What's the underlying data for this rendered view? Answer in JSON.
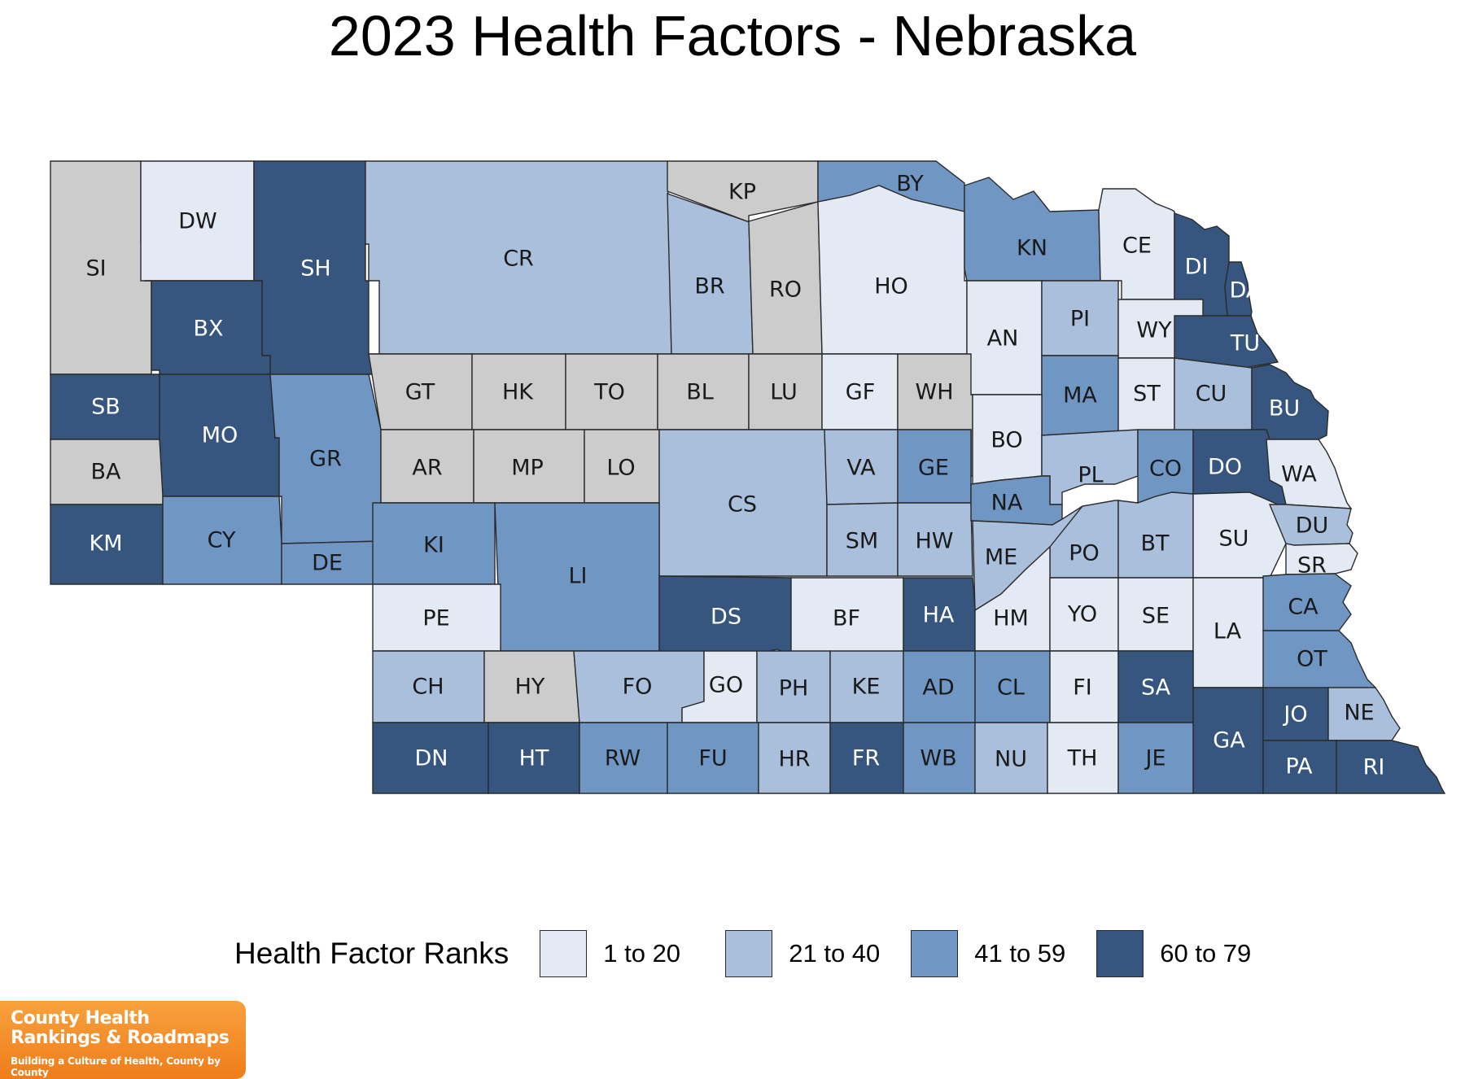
{
  "title": "2023 Health Factors - Nebraska",
  "colors": {
    "1": "#e3eaf4",
    "2": "#a9bfdb",
    "3": "#7096c4",
    "4": "#36567f",
    "none": "#cccccc",
    "light_text": "#ffffff",
    "dark_text": "#1a1a1a"
  },
  "legend": {
    "title": "Health Factor Ranks",
    "items": [
      {
        "label": "1 to 20",
        "class": "1"
      },
      {
        "label": "21 to 40",
        "class": "2"
      },
      {
        "label": "41 to 59",
        "class": "3"
      },
      {
        "label": "60 to 79",
        "class": "4"
      }
    ]
  },
  "counties": [
    {
      "code": "SI",
      "class": "none"
    },
    {
      "code": "DW",
      "class": "1"
    },
    {
      "code": "SH",
      "class": "4"
    },
    {
      "code": "BX",
      "class": "4"
    },
    {
      "code": "CR",
      "class": "2"
    },
    {
      "code": "KP",
      "class": "none"
    },
    {
      "code": "BR",
      "class": "2"
    },
    {
      "code": "RO",
      "class": "none"
    },
    {
      "code": "BY",
      "class": "3"
    },
    {
      "code": "HO",
      "class": "1"
    },
    {
      "code": "KN",
      "class": "3"
    },
    {
      "code": "CE",
      "class": "1"
    },
    {
      "code": "DI",
      "class": "4"
    },
    {
      "code": "DA",
      "class": "4"
    },
    {
      "code": "AN",
      "class": "1"
    },
    {
      "code": "PI",
      "class": "2"
    },
    {
      "code": "WY",
      "class": "1"
    },
    {
      "code": "TU",
      "class": "4"
    },
    {
      "code": "SB",
      "class": "4"
    },
    {
      "code": "MO",
      "class": "4"
    },
    {
      "code": "GR",
      "class": "3"
    },
    {
      "code": "GT",
      "class": "none"
    },
    {
      "code": "HK",
      "class": "none"
    },
    {
      "code": "TO",
      "class": "none"
    },
    {
      "code": "BL",
      "class": "none"
    },
    {
      "code": "LU",
      "class": "none"
    },
    {
      "code": "GF",
      "class": "1"
    },
    {
      "code": "WH",
      "class": "none"
    },
    {
      "code": "MA",
      "class": "3"
    },
    {
      "code": "ST",
      "class": "1"
    },
    {
      "code": "CU",
      "class": "2"
    },
    {
      "code": "BU",
      "class": "4"
    },
    {
      "code": "BA",
      "class": "none"
    },
    {
      "code": "AR",
      "class": "none"
    },
    {
      "code": "MP",
      "class": "none"
    },
    {
      "code": "LO",
      "class": "none"
    },
    {
      "code": "CS",
      "class": "2"
    },
    {
      "code": "VA",
      "class": "2"
    },
    {
      "code": "GE",
      "class": "3"
    },
    {
      "code": "BO",
      "class": "1"
    },
    {
      "code": "PL",
      "class": "2"
    },
    {
      "code": "CO",
      "class": "3"
    },
    {
      "code": "DO",
      "class": "4"
    },
    {
      "code": "WA",
      "class": "1"
    },
    {
      "code": "KM",
      "class": "4"
    },
    {
      "code": "CY",
      "class": "3"
    },
    {
      "code": "DE",
      "class": "3"
    },
    {
      "code": "KI",
      "class": "3"
    },
    {
      "code": "LI",
      "class": "3"
    },
    {
      "code": "SM",
      "class": "2"
    },
    {
      "code": "HW",
      "class": "2"
    },
    {
      "code": "NA",
      "class": "3"
    },
    {
      "code": "ME",
      "class": "2"
    },
    {
      "code": "PO",
      "class": "2"
    },
    {
      "code": "BT",
      "class": "2"
    },
    {
      "code": "SU",
      "class": "1"
    },
    {
      "code": "DU",
      "class": "2"
    },
    {
      "code": "SR",
      "class": "1"
    },
    {
      "code": "PE",
      "class": "1"
    },
    {
      "code": "DS",
      "class": "4"
    },
    {
      "code": "BF",
      "class": "1"
    },
    {
      "code": "HA",
      "class": "4"
    },
    {
      "code": "HM",
      "class": "1"
    },
    {
      "code": "YO",
      "class": "1"
    },
    {
      "code": "SE",
      "class": "1"
    },
    {
      "code": "LA",
      "class": "1"
    },
    {
      "code": "CA",
      "class": "3"
    },
    {
      "code": "OT",
      "class": "3"
    },
    {
      "code": "CH",
      "class": "2"
    },
    {
      "code": "HY",
      "class": "none"
    },
    {
      "code": "FO",
      "class": "2"
    },
    {
      "code": "GO",
      "class": "1"
    },
    {
      "code": "PH",
      "class": "2"
    },
    {
      "code": "KE",
      "class": "2"
    },
    {
      "code": "AD",
      "class": "3"
    },
    {
      "code": "CL",
      "class": "3"
    },
    {
      "code": "FI",
      "class": "1"
    },
    {
      "code": "SA",
      "class": "4"
    },
    {
      "code": "GA",
      "class": "4"
    },
    {
      "code": "JO",
      "class": "4"
    },
    {
      "code": "NE",
      "class": "2"
    },
    {
      "code": "DN",
      "class": "4"
    },
    {
      "code": "HT",
      "class": "4"
    },
    {
      "code": "RW",
      "class": "3"
    },
    {
      "code": "FU",
      "class": "3"
    },
    {
      "code": "HR",
      "class": "2"
    },
    {
      "code": "FR",
      "class": "4"
    },
    {
      "code": "WB",
      "class": "3"
    },
    {
      "code": "NU",
      "class": "2"
    },
    {
      "code": "TH",
      "class": "1"
    },
    {
      "code": "JE",
      "class": "3"
    },
    {
      "code": "PA",
      "class": "4"
    },
    {
      "code": "RI",
      "class": "4"
    }
  ],
  "logo": {
    "line1": "County Health",
    "line2": "Rankings & Roadmaps",
    "tagline": "Building a Culture of Health, County by County"
  }
}
